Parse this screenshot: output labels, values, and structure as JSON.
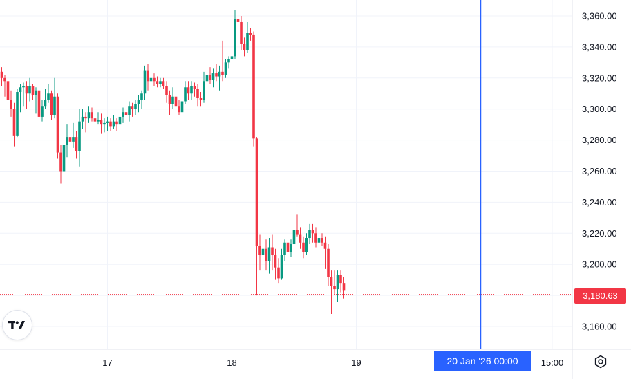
{
  "chart_data": {
    "type": "candlestick",
    "y_ticks": [
      3160,
      3180,
      3200,
      3220,
      3240,
      3260,
      3280,
      3300,
      3320,
      3340,
      3360
    ],
    "y_tick_labels": [
      "3,160.00",
      "3,180.00",
      "3,200.00",
      "3,220.00",
      "3,240.00",
      "3,260.00",
      "3,280.00",
      "3,300.00",
      "3,320.00",
      "3,340.00",
      "3,360.00"
    ],
    "x_ticks": [
      "17",
      "18",
      "19",
      "15:00"
    ],
    "x_tick_index": [
      34,
      74,
      114,
      177
    ],
    "last_price": 3180.63,
    "last_price_label": "3,180.63",
    "cursor_index": 154,
    "cursor_label": "20 Jan '26   00:00",
    "candles": [
      [
        3324,
        3327,
        3315,
        3320
      ],
      [
        3320,
        3322,
        3308,
        3318
      ],
      [
        3318,
        3320,
        3301,
        3306
      ],
      [
        3306,
        3312,
        3295,
        3300
      ],
      [
        3300,
        3304,
        3276,
        3283
      ],
      [
        3283,
        3313,
        3282,
        3311
      ],
      [
        3311,
        3316,
        3298,
        3314
      ],
      [
        3314,
        3317,
        3302,
        3315
      ],
      [
        3315,
        3318,
        3300,
        3310
      ],
      [
        3310,
        3320,
        3305,
        3315
      ],
      [
        3315,
        3316,
        3306,
        3309
      ],
      [
        3309,
        3314,
        3297,
        3312
      ],
      [
        3312,
        3313,
        3292,
        3295
      ],
      [
        3295,
        3306,
        3292,
        3302
      ],
      [
        3302,
        3313,
        3300,
        3306
      ],
      [
        3306,
        3316,
        3304,
        3310
      ],
      [
        3310,
        3312,
        3293,
        3296
      ],
      [
        3296,
        3320,
        3294,
        3308
      ],
      [
        3308,
        3310,
        3268,
        3272
      ],
      [
        3272,
        3277,
        3252,
        3260
      ],
      [
        3260,
        3286,
        3257,
        3277
      ],
      [
        3277,
        3290,
        3269,
        3282
      ],
      [
        3282,
        3290,
        3274,
        3279
      ],
      [
        3279,
        3291,
        3275,
        3282
      ],
      [
        3282,
        3286,
        3268,
        3273
      ],
      [
        3273,
        3300,
        3263,
        3292
      ],
      [
        3292,
        3300,
        3287,
        3295
      ],
      [
        3295,
        3298,
        3285,
        3294
      ],
      [
        3294,
        3302,
        3291,
        3298
      ],
      [
        3298,
        3301,
        3292,
        3294
      ],
      [
        3294,
        3299,
        3289,
        3292
      ],
      [
        3292,
        3298,
        3290,
        3293
      ],
      [
        3293,
        3297,
        3284,
        3290
      ],
      [
        3290,
        3294,
        3285,
        3291
      ],
      [
        3291,
        3295,
        3286,
        3292
      ],
      [
        3292,
        3294,
        3286,
        3289
      ],
      [
        3289,
        3296,
        3287,
        3292
      ],
      [
        3292,
        3294,
        3286,
        3290
      ],
      [
        3290,
        3297,
        3286,
        3295
      ],
      [
        3295,
        3301,
        3291,
        3298
      ],
      [
        3298,
        3304,
        3293,
        3296
      ],
      [
        3296,
        3305,
        3292,
        3302
      ],
      [
        3302,
        3304,
        3295,
        3300
      ],
      [
        3300,
        3306,
        3296,
        3303
      ],
      [
        3303,
        3309,
        3298,
        3306
      ],
      [
        3306,
        3312,
        3300,
        3310
      ],
      [
        3310,
        3328,
        3306,
        3325
      ],
      [
        3325,
        3329,
        3312,
        3318
      ],
      [
        3318,
        3326,
        3316,
        3320
      ],
      [
        3320,
        3323,
        3315,
        3318
      ],
      [
        3318,
        3321,
        3314,
        3316
      ],
      [
        3316,
        3320,
        3314,
        3318
      ],
      [
        3318,
        3320,
        3313,
        3315
      ],
      [
        3315,
        3318,
        3304,
        3309
      ],
      [
        3309,
        3312,
        3296,
        3303
      ],
      [
        3303,
        3314,
        3300,
        3308
      ],
      [
        3308,
        3311,
        3297,
        3302
      ],
      [
        3302,
        3306,
        3296,
        3298
      ],
      [
        3298,
        3309,
        3296,
        3305
      ],
      [
        3305,
        3318,
        3303,
        3314
      ],
      [
        3314,
        3318,
        3306,
        3310
      ],
      [
        3310,
        3318,
        3306,
        3315
      ],
      [
        3315,
        3317,
        3308,
        3313
      ],
      [
        3313,
        3316,
        3302,
        3307
      ],
      [
        3307,
        3311,
        3302,
        3306
      ],
      [
        3306,
        3324,
        3304,
        3318
      ],
      [
        3318,
        3326,
        3314,
        3322
      ],
      [
        3322,
        3327,
        3316,
        3319
      ],
      [
        3319,
        3326,
        3314,
        3323
      ],
      [
        3323,
        3329,
        3318,
        3321
      ],
      [
        3321,
        3328,
        3312,
        3324
      ],
      [
        3324,
        3344,
        3318,
        3322
      ],
      [
        3322,
        3332,
        3320,
        3330
      ],
      [
        3330,
        3334,
        3326,
        3332
      ],
      [
        3332,
        3338,
        3328,
        3334
      ],
      [
        3334,
        3364,
        3332,
        3358
      ],
      [
        3358,
        3362,
        3345,
        3356
      ],
      [
        3356,
        3360,
        3338,
        3342
      ],
      [
        3342,
        3346,
        3334,
        3338
      ],
      [
        3338,
        3356,
        3336,
        3349
      ],
      [
        3349,
        3352,
        3344,
        3348
      ],
      [
        3348,
        3350,
        3276,
        3281
      ],
      [
        3281,
        3282,
        3180,
        3212
      ],
      [
        3212,
        3219,
        3196,
        3206
      ],
      [
        3206,
        3212,
        3194,
        3210
      ],
      [
        3210,
        3216,
        3196,
        3202
      ],
      [
        3202,
        3217,
        3194,
        3211
      ],
      [
        3211,
        3219,
        3196,
        3206
      ],
      [
        3206,
        3210,
        3190,
        3198
      ],
      [
        3198,
        3204,
        3188,
        3191
      ],
      [
        3191,
        3210,
        3190,
        3206
      ],
      [
        3206,
        3216,
        3202,
        3214
      ],
      [
        3214,
        3220,
        3204,
        3208
      ],
      [
        3208,
        3216,
        3205,
        3213
      ],
      [
        3213,
        3225,
        3210,
        3222
      ],
      [
        3222,
        3232,
        3218,
        3219
      ],
      [
        3219,
        3224,
        3210,
        3214
      ],
      [
        3214,
        3218,
        3204,
        3208
      ],
      [
        3208,
        3220,
        3206,
        3217
      ],
      [
        3217,
        3226,
        3213,
        3222
      ],
      [
        3222,
        3226,
        3214,
        3220
      ],
      [
        3220,
        3224,
        3211,
        3214
      ],
      [
        3214,
        3222,
        3210,
        3217
      ],
      [
        3217,
        3220,
        3212,
        3214
      ],
      [
        3214,
        3218,
        3197,
        3210
      ],
      [
        3210,
        3213,
        3186,
        3192
      ],
      [
        3192,
        3196,
        3168,
        3186
      ],
      [
        3186,
        3196,
        3181,
        3184
      ],
      [
        3184,
        3196,
        3176,
        3193
      ],
      [
        3193,
        3196,
        3182,
        3188
      ],
      [
        3188,
        3192,
        3178,
        3183
      ]
    ]
  },
  "colors": {
    "up": "#089981",
    "down": "#f23645",
    "grid": "#f0f3fa",
    "cursor": "#2962ff",
    "axis_text": "#131722"
  },
  "branding": {
    "logo_icon": "tradingview-logo-icon"
  },
  "controls": {
    "settings_icon": "settings-gear-icon"
  }
}
